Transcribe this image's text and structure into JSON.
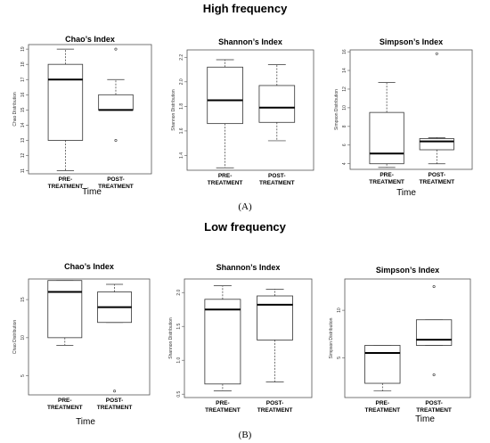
{
  "figure": {
    "sections": [
      {
        "title": "High frequency",
        "panel_label": "(A)"
      },
      {
        "title": "Low frequency",
        "panel_label": "(B)"
      }
    ]
  },
  "chart_data": [
    {
      "type": "box",
      "section": "High frequency",
      "title": "Chao’s Index",
      "xlabel": "Time",
      "ylabel": "Chao Distribution",
      "categories": [
        "PRE-\nTREATMENT",
        "POST-\nTREATMENT"
      ],
      "ylim": [
        10.8,
        19.3
      ],
      "yticks": [
        11,
        12,
        13,
        14,
        15,
        16,
        17,
        18,
        19
      ],
      "ytick_labels": [
        "11",
        "12",
        "13",
        "14",
        "15",
        "16",
        "17",
        "18",
        "19"
      ],
      "boxes": [
        {
          "whisker_low": 11,
          "q1": 13,
          "median": 17,
          "q3": 18,
          "whisker_high": 19,
          "outliers": []
        },
        {
          "whisker_low": 15,
          "q1": 15,
          "median": 15,
          "q3": 16,
          "whisker_high": 17,
          "outliers": [
            13,
            19
          ]
        }
      ]
    },
    {
      "type": "box",
      "section": "High frequency",
      "title": "Shannon’s Index",
      "xlabel": "",
      "ylabel": "Shannon Distribution",
      "categories": [
        "PRE-\nTREATMENT",
        "POST-\nTREATMENT"
      ],
      "ylim": [
        1.28,
        2.26
      ],
      "yticks": [
        1.4,
        1.6,
        1.8,
        2.0,
        2.2
      ],
      "ytick_labels": [
        "1.4",
        "1.6",
        "1.8",
        "2.0",
        "2.2"
      ],
      "boxes": [
        {
          "whisker_low": 1.3,
          "q1": 1.66,
          "median": 1.85,
          "q3": 2.12,
          "whisker_high": 2.18,
          "outliers": []
        },
        {
          "whisker_low": 1.52,
          "q1": 1.67,
          "median": 1.79,
          "q3": 1.97,
          "whisker_high": 2.14,
          "outliers": []
        }
      ]
    },
    {
      "type": "box",
      "section": "High frequency",
      "title": "Simpson’s Index",
      "xlabel": "Time",
      "ylabel": "Simpson Distribution",
      "categories": [
        "PRE-\nTREATMENT",
        "POST-\nTREATMENT"
      ],
      "ylim": [
        3.4,
        16.2
      ],
      "yticks": [
        4,
        6,
        8,
        10,
        12,
        14,
        16
      ],
      "ytick_labels": [
        "4",
        "6",
        "8",
        "10",
        "12",
        "14",
        "16"
      ],
      "boxes": [
        {
          "whisker_low": 3.6,
          "q1": 4.0,
          "median": 5.1,
          "q3": 9.5,
          "whisker_high": 12.7,
          "outliers": []
        },
        {
          "whisker_low": 4.0,
          "q1": 5.5,
          "median": 6.4,
          "q3": 6.7,
          "whisker_high": 6.8,
          "outliers": [
            15.8
          ]
        }
      ]
    },
    {
      "type": "box",
      "section": "Low frequency",
      "title": "Chao’s Index",
      "xlabel": "Time",
      "ylabel": "Chao Distribution",
      "categories": [
        "PRE-\nTREATMENT",
        "POST-\nTREATMENT"
      ],
      "ylim": [
        2.5,
        17.7
      ],
      "yticks": [
        5,
        10,
        15
      ],
      "ytick_labels": [
        "5",
        "10",
        "15"
      ],
      "boxes": [
        {
          "whisker_low": 9,
          "q1": 10,
          "median": 16,
          "q3": 17.5,
          "whisker_high": 17.5,
          "outliers": []
        },
        {
          "whisker_low": 12,
          "q1": 12,
          "median": 14,
          "q3": 16,
          "whisker_high": 17,
          "outliers": [
            3
          ]
        }
      ]
    },
    {
      "type": "box",
      "section": "Low frequency",
      "title": "Shannon’s Index",
      "xlabel": "",
      "ylabel": "Shannon Distribution",
      "categories": [
        "PRE-\nTREATMENT",
        "POST-\nTREATMENT"
      ],
      "ylim": [
        0.45,
        2.2
      ],
      "yticks": [
        0.5,
        1.0,
        1.5,
        2.0
      ],
      "ytick_labels": [
        "0.5",
        "1.0",
        "1.5",
        "2.0"
      ],
      "boxes": [
        {
          "whisker_low": 0.55,
          "q1": 0.65,
          "median": 1.75,
          "q3": 1.9,
          "whisker_high": 2.1,
          "outliers": []
        },
        {
          "whisker_low": 0.68,
          "q1": 1.3,
          "median": 1.82,
          "q3": 1.95,
          "whisker_high": 2.05,
          "outliers": []
        }
      ]
    },
    {
      "type": "box",
      "section": "Low frequency",
      "title": "Simpson’s Index",
      "xlabel": "Time",
      "ylabel": "Simpson Distribution",
      "categories": [
        "PRE-\nTREATMENT",
        "POST-\nTREATMENT"
      ],
      "ylim": [
        0.8,
        13.3
      ],
      "yticks": [
        5,
        10
      ],
      "ytick_labels": [
        "5",
        "10"
      ],
      "boxes": [
        {
          "whisker_low": 1.5,
          "q1": 2.3,
          "median": 5.5,
          "q3": 6.3,
          "whisker_high": 6.3,
          "outliers": []
        },
        {
          "whisker_low": 6.3,
          "q1": 6.3,
          "median": 6.9,
          "q3": 9.0,
          "whisker_high": 9.0,
          "outliers": [
            3.2,
            12.5
          ]
        }
      ]
    }
  ]
}
